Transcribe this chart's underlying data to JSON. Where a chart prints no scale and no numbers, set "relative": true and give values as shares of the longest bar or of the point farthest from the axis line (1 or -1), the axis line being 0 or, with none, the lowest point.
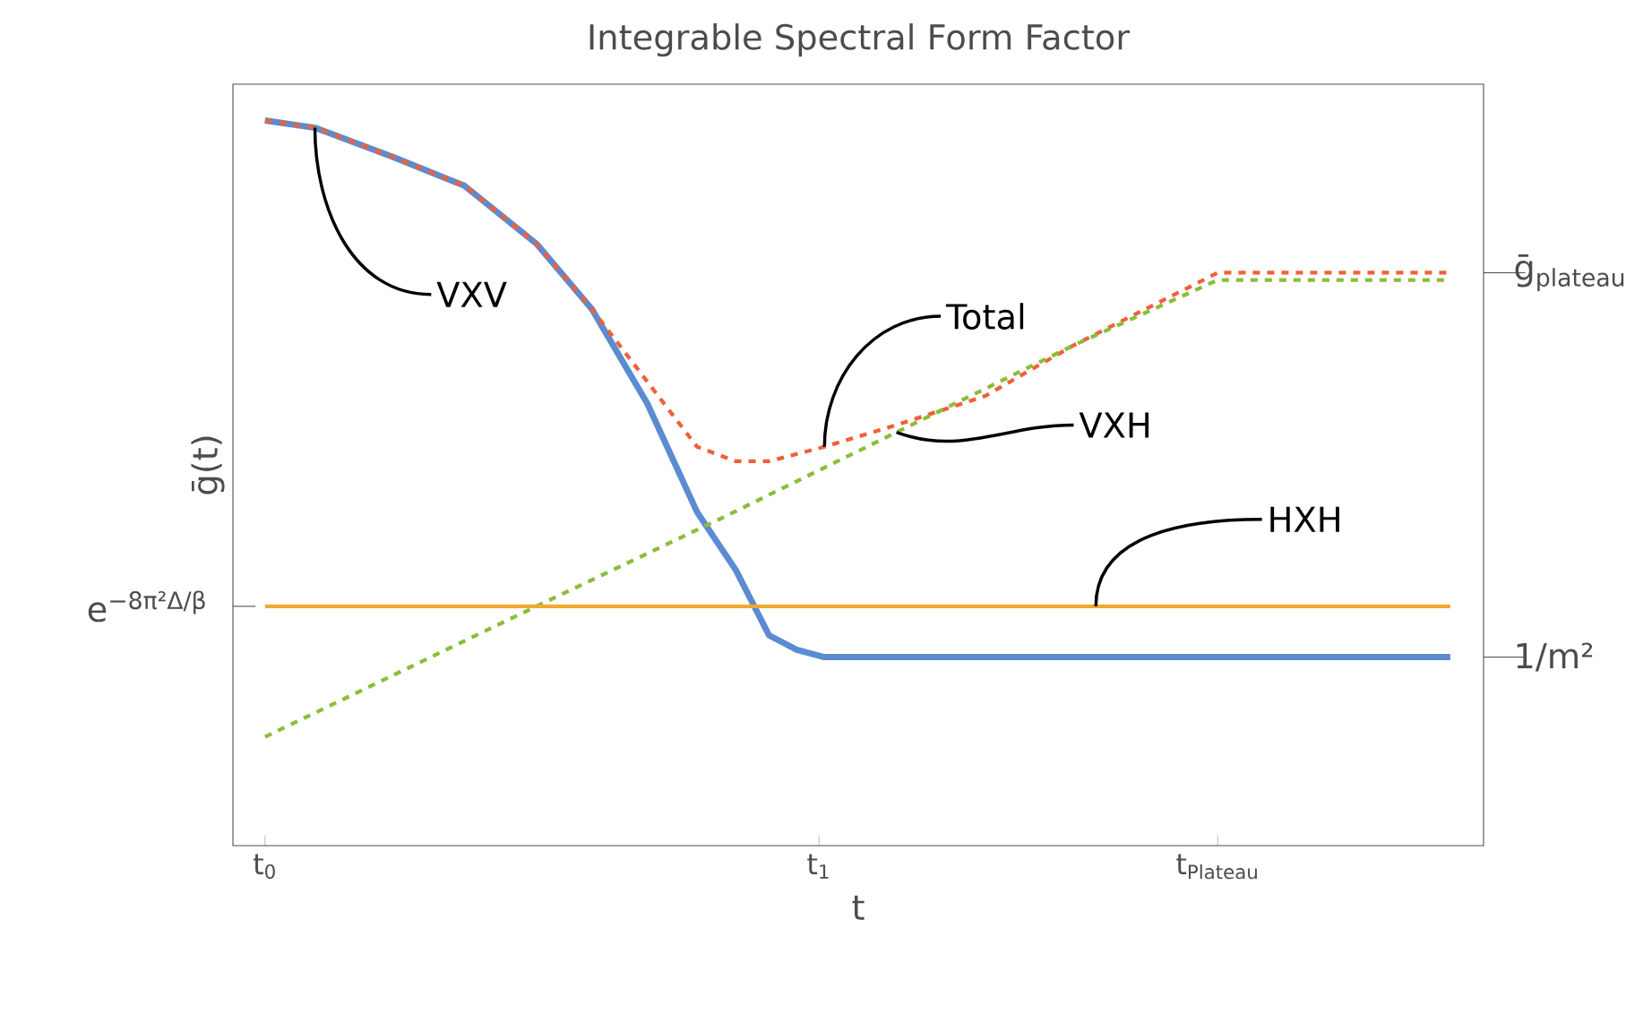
{
  "chart_data": {
    "type": "line",
    "relative": true,
    "title": "Integrable Spectral Form Factor",
    "xlabel": "t",
    "ylabel": "ḡ(t)",
    "xlim": [
      -0.058,
      2.2
    ],
    "xticks": [
      {
        "value": 0,
        "label": "t$_{0}$"
      },
      {
        "value": 1,
        "label": "t$_{1}$"
      },
      {
        "value": 1.72,
        "label": "t$_{Plateau}$"
      }
    ],
    "series": [
      {
        "name": "VXV",
        "color": "#5b8bd0",
        "line_style": "solid",
        "x": [
          0,
          0.09,
          0.23,
          0.36,
          0.49,
          0.59,
          0.69,
          0.78,
          0.85,
          0.91,
          0.96,
          1.01,
          1.14,
          1.3,
          1.46,
          1.62,
          1.79,
          1.95,
          2.14
        ],
        "values": [
          1.0,
          0.99,
          0.95,
          0.91,
          0.83,
          0.74,
          0.61,
          0.46,
          0.38,
          0.29,
          0.27,
          0.26,
          0.26,
          0.26,
          0.26,
          0.26,
          0.26,
          0.26,
          0.26
        ]
      },
      {
        "name": "Total",
        "color": "#f0603a",
        "line_style": "dashed",
        "x": [
          0,
          0.09,
          0.23,
          0.36,
          0.49,
          0.59,
          0.69,
          0.78,
          0.85,
          0.91,
          1.01,
          1.14,
          1.3,
          1.46,
          1.72,
          1.95,
          2.14
        ],
        "values": [
          1.0,
          0.99,
          0.95,
          0.91,
          0.83,
          0.74,
          0.64,
          0.55,
          0.53,
          0.53,
          0.55,
          0.58,
          0.62,
          0.69,
          0.79,
          0.79,
          0.79
        ]
      },
      {
        "name": "VXH",
        "color": "#8cbd3a",
        "line_style": "dashed",
        "x": [
          0,
          0.49,
          0.82,
          1.14,
          1.46,
          1.72,
          1.95,
          2.14
        ],
        "values": [
          0.15,
          0.33,
          0.45,
          0.57,
          0.69,
          0.78,
          0.78,
          0.78
        ]
      },
      {
        "name": "HXH",
        "color": "#f0a830",
        "line_style": "solid",
        "x": [
          0,
          0.5,
          1.0,
          1.5,
          2.14
        ],
        "values": [
          0.33,
          0.33,
          0.33,
          0.33,
          0.33
        ]
      }
    ],
    "annotations": [
      "e$^{−8π²Δ/β}$",
      "ḡ$_{plateau}$",
      "1/m²"
    ]
  }
}
